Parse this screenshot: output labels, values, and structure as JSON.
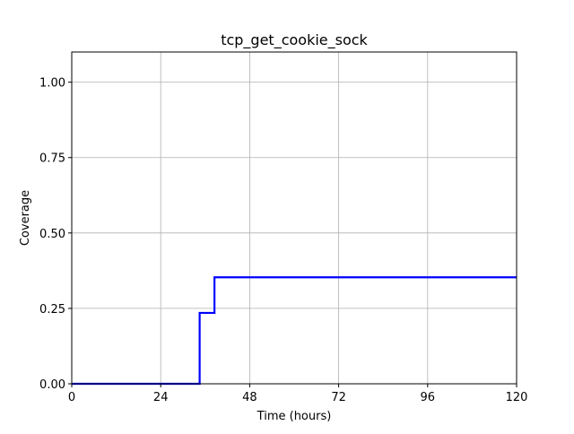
{
  "chart_data": {
    "type": "line",
    "title": "tcp_get_cookie_sock",
    "xlabel": "Time (hours)",
    "ylabel": "Coverage",
    "xlim": [
      0,
      120
    ],
    "ylim": [
      0,
      1.1
    ],
    "xticks": [
      0,
      24,
      48,
      72,
      96,
      120
    ],
    "xtick_labels": [
      "0",
      "24",
      "48",
      "72",
      "96",
      "120"
    ],
    "yticks": [
      0,
      0.25,
      0.5,
      0.75,
      1.0
    ],
    "ytick_labels": [
      "0.00",
      "0.25",
      "0.50",
      "0.75",
      "1.00"
    ],
    "grid": true,
    "legend": "none",
    "series": [
      {
        "color": "#0000ff",
        "step": "post",
        "x": [
          0,
          34.5,
          38.5,
          120
        ],
        "y": [
          0,
          0.235,
          0.353,
          0.353
        ]
      }
    ]
  }
}
